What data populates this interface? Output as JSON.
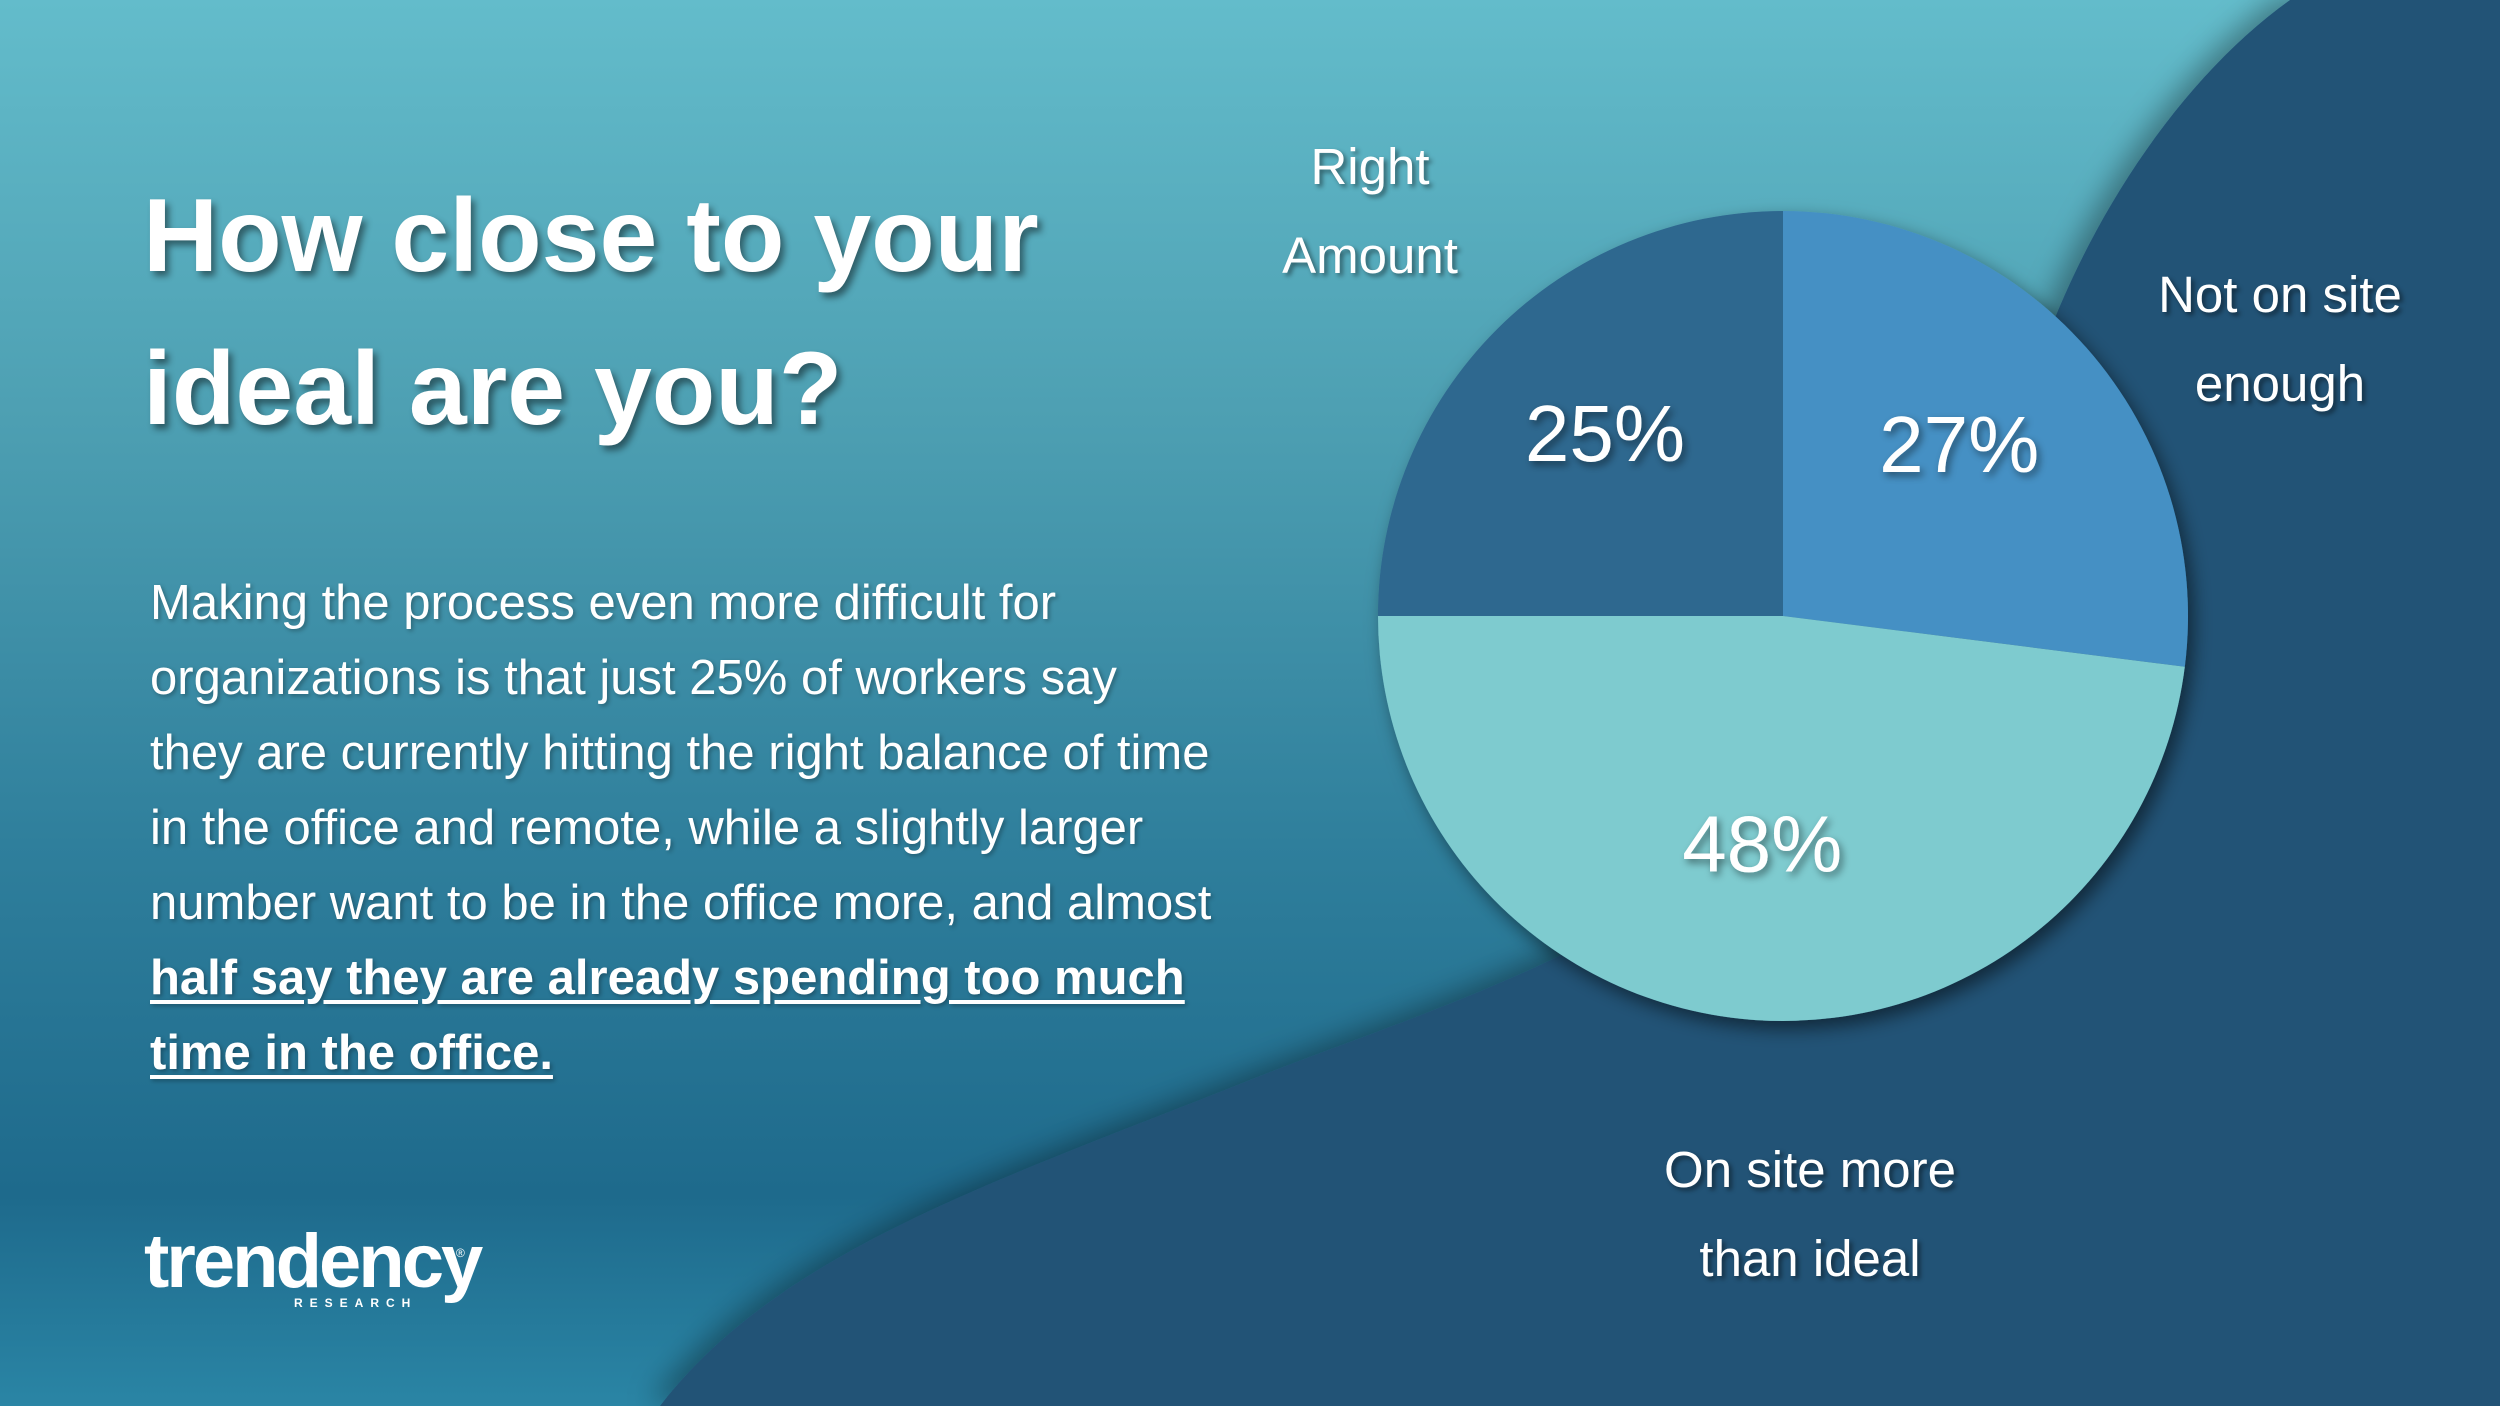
{
  "title": {
    "line1": "How close to your",
    "line2": "ideal are you?"
  },
  "body": {
    "lines": [
      "Making the process even more difficult for",
      "organizations is that just 25% of workers say",
      "they are currently hitting the right balance of time",
      "in the office and remote, while a slightly larger",
      "number want to be in the office more, and almost"
    ],
    "emphasis_lines": [
      "half say they are already spending too much",
      "time in the office."
    ]
  },
  "logo": {
    "name": "trendency",
    "sub": "RESEARCH"
  },
  "colors": {
    "slice_not_enough": "#4590c4",
    "slice_more_than_ideal": "#7ecbcf",
    "slice_right_amount": "#2f678f",
    "dark_wave": "#245376"
  },
  "chart_data": {
    "type": "pie",
    "title": "",
    "slices": [
      {
        "label": "Not on site enough",
        "value": 27,
        "value_label": "27%"
      },
      {
        "label": "On site more than ideal",
        "value": 48,
        "value_label": "48%"
      },
      {
        "label": "Right Amount",
        "value": 25,
        "value_label": "25%"
      }
    ],
    "labels_display": {
      "not_enough": [
        "Not on site",
        "enough"
      ],
      "more_than_ideal": [
        "On site more",
        "than ideal"
      ],
      "right_amount": [
        "Right",
        "Amount"
      ]
    }
  }
}
